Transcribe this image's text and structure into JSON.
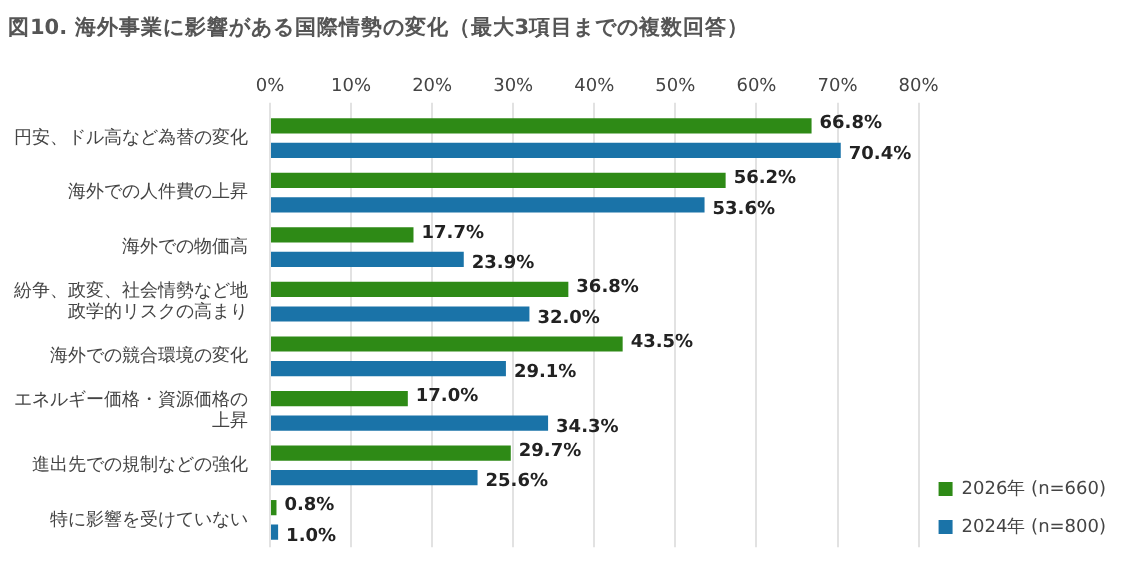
{
  "chart_data": {
    "type": "bar",
    "orientation": "horizontal",
    "title": "図10. 海外事業に影響がある国際情勢の変化（最大3項目までの複数回答）",
    "categories": [
      "円安、ドル高など為替の変化",
      "海外での人件費の上昇",
      "海外での物価高",
      "紛争、政変、社会情勢など地政学的リスクの高まり",
      "海外での競合環境の変化",
      "エネルギー価格・資源価格の上昇",
      "進出先での規制などの強化",
      "特に影響を受けていない"
    ],
    "series": [
      {
        "name": "2026年 (n=660)",
        "color": "#2e8a16",
        "values": [
          66.8,
          56.2,
          17.7,
          36.8,
          43.5,
          17.0,
          29.7,
          0.8
        ],
        "value_labels": [
          "66.8%",
          "56.2%",
          "17.7%",
          "36.8%",
          "43.5%",
          "17.0%",
          "29.7%",
          "0.8%"
        ]
      },
      {
        "name": "2024年 (n=800)",
        "color": "#1a73a8",
        "values": [
          70.4,
          53.6,
          23.9,
          32.0,
          29.1,
          34.3,
          25.6,
          1.0
        ],
        "value_labels": [
          "70.4%",
          "53.6%",
          "23.9%",
          "32.0%",
          "29.1%",
          "34.3%",
          "25.6%",
          "1.0%"
        ]
      }
    ],
    "xlim": [
      0,
      80
    ],
    "xticks": [
      {
        "value": 0,
        "label": "0%"
      },
      {
        "value": 10,
        "label": "10%"
      },
      {
        "value": 20,
        "label": "20%"
      },
      {
        "value": 30,
        "label": "30%"
      },
      {
        "value": 40,
        "label": "40%"
      },
      {
        "value": 50,
        "label": "50%"
      },
      {
        "value": 60,
        "label": "60%"
      },
      {
        "value": 70,
        "label": "70%"
      },
      {
        "value": 80,
        "label": "80%"
      }
    ],
    "grid": "x",
    "legend": "bottom right"
  }
}
